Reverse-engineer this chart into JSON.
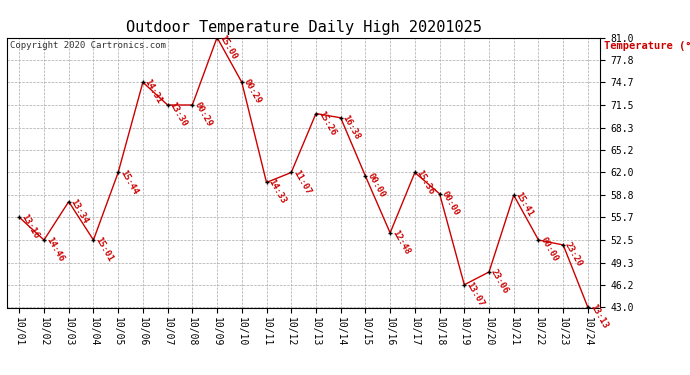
{
  "title": "Outdoor Temperature Daily High 20201025",
  "copyright": "Copyright 2020 Cartronics.com",
  "ylabel": "Temperature (°F)",
  "background_color": "#ffffff",
  "line_color": "#cc0000",
  "marker_color": "#000000",
  "grid_color": "#aaaaaa",
  "dates": [
    "10/01",
    "10/02",
    "10/03",
    "10/04",
    "10/05",
    "10/06",
    "10/07",
    "10/08",
    "10/09",
    "10/10",
    "10/11",
    "10/12",
    "10/13",
    "10/14",
    "10/15",
    "10/16",
    "10/17",
    "10/18",
    "10/19",
    "10/20",
    "10/21",
    "10/22",
    "10/23",
    "10/24"
  ],
  "temps": [
    55.7,
    52.5,
    57.9,
    52.5,
    62.0,
    74.7,
    71.5,
    71.5,
    81.0,
    74.7,
    60.6,
    62.0,
    70.3,
    69.7,
    61.5,
    53.5,
    62.0,
    59.0,
    46.2,
    48.0,
    58.8,
    52.5,
    51.8,
    43.0
  ],
  "labels": [
    "13:16",
    "14:46",
    "13:34",
    "15:01",
    "15:44",
    "14:31",
    "13:30",
    "00:29",
    "15:00",
    "00:29",
    "14:33",
    "11:07",
    "15:26",
    "16:38",
    "00:00",
    "12:48",
    "15:36",
    "00:00",
    "13:07",
    "23:06",
    "15:41",
    "00:00",
    "23:20",
    "13:13"
  ],
  "ylim": [
    43.0,
    81.0
  ],
  "yticks": [
    43.0,
    46.2,
    49.3,
    52.5,
    55.7,
    58.8,
    62.0,
    65.2,
    68.3,
    71.5,
    74.7,
    77.8,
    81.0
  ],
  "title_fontsize": 11,
  "label_fontsize": 6.5,
  "axis_fontsize": 7,
  "copyright_fontsize": 6.5,
  "ylabel_fontsize": 7.5
}
